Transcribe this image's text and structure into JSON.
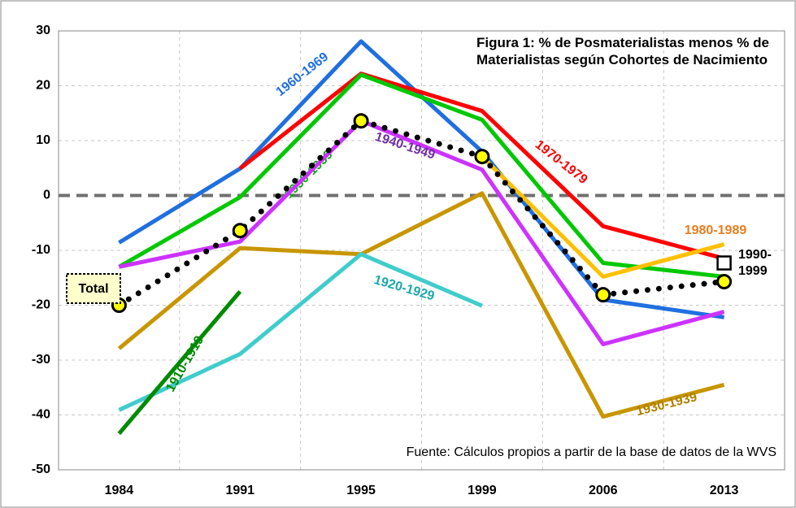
{
  "chart_data": {
    "type": "line",
    "title": "Figura 1: % de Posmaterialistas menos % de Materialistas según Cohortes de Nacimiento",
    "source": "Fuente: Cálculos propios a partir de la base de datos de la WVS",
    "categories": [
      "1984",
      "1991",
      "1995",
      "1999",
      "2006",
      "2013"
    ],
    "ylim": [
      -50,
      30
    ],
    "yticks": [
      -50,
      -40,
      -30,
      -20,
      -10,
      0,
      10,
      20,
      30
    ],
    "grid": true,
    "series": [
      {
        "name": "1930-1939",
        "color": "#c89600",
        "values": [
          -27.9,
          -9.6,
          -10.7,
          0.4,
          -40.3,
          -34.5
        ]
      },
      {
        "name": "1920-1929",
        "color": "#40cccc",
        "values": [
          -39.1,
          -28.9,
          -10.7,
          -20.1,
          null,
          null
        ]
      },
      {
        "name": "1910-1919",
        "color": "#008a00",
        "values": [
          -43.4,
          -17.5,
          null,
          null,
          null,
          null
        ]
      },
      {
        "name": "1960-1969",
        "color": "#1f6fe0",
        "values": [
          -8.6,
          4.9,
          28.1,
          8,
          -19,
          -22.2
        ]
      },
      {
        "name": "1970-1979",
        "color": "#ff0000",
        "values": [
          null,
          4.9,
          22.2,
          15.4,
          -5.6,
          -11.5
        ]
      },
      {
        "name": "1950-1959",
        "color": "#00c800",
        "values": [
          -13,
          -0.3,
          22,
          13.8,
          -12.3,
          -14.8
        ]
      },
      {
        "name": "1980-1989",
        "color": "#ffc000",
        "values": [
          null,
          null,
          null,
          7.1,
          -14.8,
          -8.9
        ]
      },
      {
        "name": "1940-1949",
        "color": "#cc33ff",
        "values": [
          -13,
          -8.4,
          13.6,
          4.7,
          -27.1,
          -21.2
        ]
      },
      {
        "name": "Total",
        "color": "#000000",
        "style": "dotted",
        "marker": "circle",
        "marker_color": "#ffff00",
        "values": [
          -20,
          -6.4,
          13.6,
          7.1,
          -18.1,
          -15.7
        ]
      },
      {
        "name": "1990-1999",
        "color": "#000000",
        "marker": "square",
        "marker_color": "#ffffff",
        "values": [
          null,
          null,
          null,
          null,
          null,
          -12.3
        ]
      }
    ]
  }
}
